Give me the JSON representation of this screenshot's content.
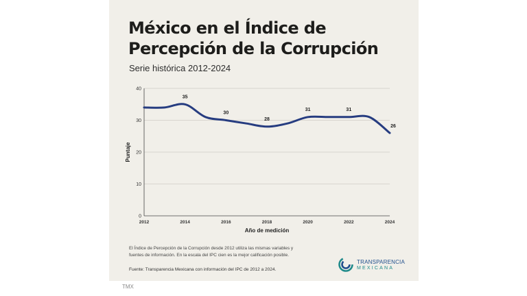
{
  "chart_data": {
    "type": "line",
    "title": "México en el Índice de Percepción de la Corrupción",
    "subtitle": "Serie histórica 2012-2024",
    "xlabel": "Año de medición",
    "ylabel": "Puntaje",
    "xlim": [
      2012,
      2024
    ],
    "ylim": [
      0,
      40
    ],
    "x_ticks": [
      "2012",
      "2014",
      "2016",
      "2018",
      "2020",
      "2022",
      "2024"
    ],
    "y_ticks": [
      "0",
      "10",
      "20",
      "30",
      "40"
    ],
    "grid": "horizontal",
    "color": "#263c80",
    "series": [
      {
        "x": [
          2012,
          2013,
          2014,
          2015,
          2016,
          2017,
          2018,
          2019,
          2020,
          2021,
          2022,
          2023,
          2024
        ],
        "values": [
          34,
          34,
          35,
          31,
          30,
          29,
          28,
          29,
          31,
          31,
          31,
          31,
          26
        ]
      }
    ],
    "data_labels": [
      {
        "x": 2014,
        "y": 35,
        "text": "35"
      },
      {
        "x": 2016,
        "y": 30,
        "text": "30"
      },
      {
        "x": 2018,
        "y": 28,
        "text": "28"
      },
      {
        "x": 2020,
        "y": 31,
        "text": "31"
      },
      {
        "x": 2022,
        "y": 31,
        "text": "31"
      },
      {
        "x": 2024,
        "y": 26,
        "text": "26"
      }
    ]
  },
  "note": "El Índice de Percepción de la Corrupción desde 2012 utiliza las mismas variables y fuentes de información. En la escala del IPC cien es la mejor calificación posible.",
  "source": "Fuente: Transparencia Mexicana con información del IPC de 2012 a 2024.",
  "logo": {
    "line1": "TRANSPARENCIA",
    "line2": "MEXICANA"
  },
  "footer": "TMX"
}
